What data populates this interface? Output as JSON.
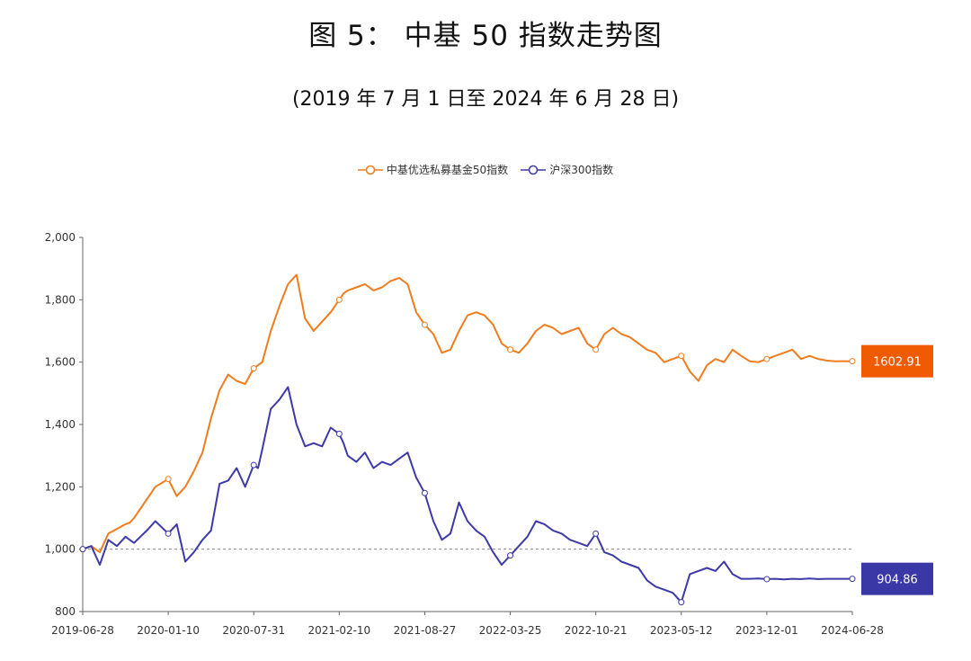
{
  "title": "图 5： 中基 50 指数走势图",
  "subtitle": "(2019 年 7 月 1 日至 2024 年 6 月 28 日)",
  "chart_data": {
    "type": "line",
    "title": "图 5： 中基 50 指数走势图",
    "subtitle": "(2019 年 7 月 1 日至 2024 年 6 月 28 日)",
    "xlabel": "",
    "ylabel": "",
    "ylim": [
      800,
      2000
    ],
    "yticks": [
      "800",
      "1,000",
      "1,200",
      "1,400",
      "1,600",
      "1,800",
      "2,000"
    ],
    "ytick_values": [
      800,
      1000,
      1200,
      1400,
      1600,
      1800,
      2000
    ],
    "xtick_labels": [
      "2019-06-28",
      "2020-01-10",
      "2020-07-31",
      "2021-02-10",
      "2021-08-27",
      "2022-03-25",
      "2022-10-21",
      "2023-05-12",
      "2023-12-01",
      "2024-06-28"
    ],
    "reference_line": 1000,
    "legend_position": "top-center",
    "x": [
      0,
      0.1,
      0.2,
      0.3,
      0.4,
      0.5,
      0.55,
      0.6,
      0.75,
      0.85,
      1,
      1.1,
      1.2,
      1.3,
      1.4,
      1.5,
      1.6,
      1.7,
      1.8,
      1.9,
      2,
      2.05,
      2.1,
      2.2,
      2.3,
      2.4,
      2.5,
      2.6,
      2.7,
      2.8,
      2.9,
      3,
      3.05,
      3.1,
      3.2,
      3.3,
      3.4,
      3.5,
      3.6,
      3.7,
      3.8,
      3.9,
      4,
      4.1,
      4.2,
      4.3,
      4.4,
      4.5,
      4.6,
      4.7,
      4.8,
      4.9,
      5,
      5.1,
      5.2,
      5.3,
      5.4,
      5.5,
      5.6,
      5.7,
      5.8,
      5.9,
      6,
      6.1,
      6.2,
      6.3,
      6.4,
      6.5,
      6.6,
      6.7,
      6.8,
      6.9,
      7,
      7.1,
      7.2,
      7.3,
      7.4,
      7.5,
      7.6,
      7.7,
      7.8,
      7.9,
      8,
      8.1,
      8.2,
      8.3,
      8.4,
      8.5,
      8.6,
      8.7,
      8.8,
      8.9,
      9
    ],
    "series": [
      {
        "name": "中基优选私募基金50指数",
        "color": "#f07c1e",
        "end_label": "1602.91",
        "label_color": "#f05a00",
        "values": [
          1000,
          1010,
          990,
          1050,
          1065,
          1080,
          1085,
          1100,
          1160,
          1200,
          1225,
          1170,
          1200,
          1250,
          1310,
          1420,
          1510,
          1560,
          1540,
          1530,
          1580,
          1590,
          1600,
          1700,
          1780,
          1850,
          1880,
          1740,
          1700,
          1730,
          1760,
          1800,
          1820,
          1830,
          1840,
          1850,
          1830,
          1840,
          1860,
          1870,
          1850,
          1760,
          1720,
          1690,
          1630,
          1640,
          1700,
          1750,
          1760,
          1750,
          1720,
          1660,
          1640,
          1630,
          1660,
          1700,
          1720,
          1710,
          1690,
          1700,
          1710,
          1660,
          1640,
          1690,
          1710,
          1690,
          1680,
          1660,
          1640,
          1630,
          1600,
          1610,
          1620,
          1570,
          1540,
          1590,
          1610,
          1600,
          1640,
          1620,
          1602.91,
          1600,
          1610,
          1620,
          1630,
          1640,
          1610,
          1620,
          1610,
          1605,
          1602.91,
          1603,
          1602.91
        ]
      },
      {
        "name": "沪深300指数",
        "color": "#3d3aa8",
        "end_label": "904.86",
        "label_color": "#3a37a6",
        "values": [
          1000,
          1010,
          950,
          1030,
          1010,
          1040,
          1030,
          1020,
          1060,
          1090,
          1050,
          1080,
          960,
          990,
          1030,
          1060,
          1210,
          1220,
          1260,
          1200,
          1270,
          1260,
          1320,
          1450,
          1480,
          1520,
          1400,
          1330,
          1340,
          1330,
          1390,
          1370,
          1340,
          1300,
          1280,
          1310,
          1260,
          1280,
          1270,
          1290,
          1310,
          1230,
          1180,
          1090,
          1030,
          1050,
          1150,
          1090,
          1060,
          1040,
          990,
          950,
          980,
          1010,
          1040,
          1090,
          1080,
          1060,
          1050,
          1030,
          1020,
          1010,
          1050,
          990,
          980,
          960,
          950,
          940,
          900,
          880,
          870,
          860,
          830,
          920,
          930,
          940,
          930,
          960,
          920,
          904.86,
          905,
          906,
          904,
          905,
          903,
          905,
          904,
          906,
          904,
          905,
          904.86,
          904.9,
          904.86
        ]
      }
    ]
  }
}
